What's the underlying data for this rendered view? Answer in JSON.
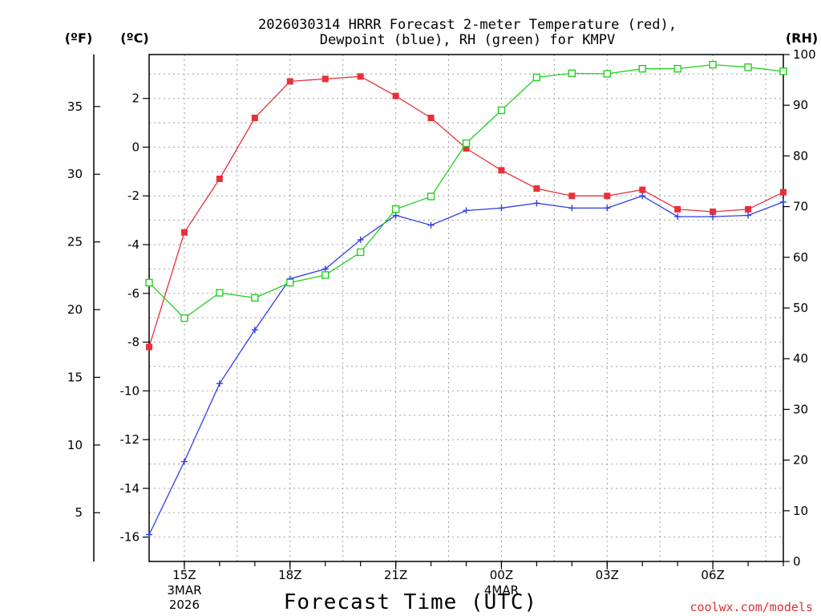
{
  "chart_data": {
    "type": "line",
    "title": [
      "2026030314 HRRR Forecast 2-meter Temperature (red),",
      "Dewpoint (blue), RH (green) for KMPV"
    ],
    "xlabel": "Forecast Time (UTC)",
    "credit": "coolwx.com/models",
    "left_outer_unit": "(ºF)",
    "left_inner_unit": "(ºC)",
    "right_unit": "(RH)",
    "x_hours": [
      14,
      15,
      16,
      17,
      18,
      19,
      20,
      21,
      22,
      23,
      24,
      25,
      26,
      27,
      28,
      29,
      30,
      31,
      32
    ],
    "x_ticks": [
      {
        "hour": 15,
        "label": "15Z",
        "sub": [
          "3MAR",
          "2026"
        ]
      },
      {
        "hour": 18,
        "label": "18Z",
        "sub": []
      },
      {
        "hour": 21,
        "label": "21Z",
        "sub": []
      },
      {
        "hour": 24,
        "label": "00Z",
        "sub": [
          "4MAR"
        ]
      },
      {
        "hour": 27,
        "label": "03Z",
        "sub": []
      },
      {
        "hour": 30,
        "label": "06Z",
        "sub": []
      }
    ],
    "celsius_axis": {
      "range": [
        -17,
        3.8
      ],
      "ticks": [
        -16,
        -14,
        -12,
        -10,
        -8,
        -6,
        -4,
        -2,
        0,
        2
      ]
    },
    "fahrenheit_axis": {
      "ticks": [
        5,
        10,
        15,
        20,
        25,
        30,
        35
      ]
    },
    "rh_axis": {
      "range": [
        0,
        100
      ],
      "ticks": [
        0,
        10,
        20,
        30,
        40,
        50,
        60,
        70,
        80,
        90,
        100
      ]
    },
    "series": [
      {
        "name": "Temperature",
        "unit": "C",
        "color": "#e8303a",
        "marker": "filled-square",
        "values": [
          -8.2,
          -3.5,
          -1.3,
          1.2,
          2.7,
          2.8,
          2.9,
          2.1,
          1.2,
          -0.05,
          -0.95,
          -1.7,
          -2.0,
          -2.0,
          -1.75,
          -2.55,
          -2.65,
          -2.55,
          -1.85
        ]
      },
      {
        "name": "Dewpoint",
        "unit": "C",
        "color": "#2f3ce8",
        "marker": "plus",
        "values": [
          -15.9,
          -12.9,
          -9.7,
          -7.5,
          -5.4,
          -5.0,
          -3.8,
          -2.8,
          -3.2,
          -2.6,
          -2.5,
          -2.3,
          -2.5,
          -2.5,
          -2.0,
          -2.85,
          -2.85,
          -2.8,
          -2.25
        ]
      },
      {
        "name": "RH",
        "unit": "%",
        "color": "#22d022",
        "marker": "open-square",
        "values": [
          55,
          48,
          53,
          52,
          55,
          56.5,
          61,
          69.5,
          72,
          82.5,
          89,
          95.5,
          96.3,
          96.2,
          97.2,
          97.2,
          98,
          97.5,
          96.7
        ]
      }
    ]
  }
}
